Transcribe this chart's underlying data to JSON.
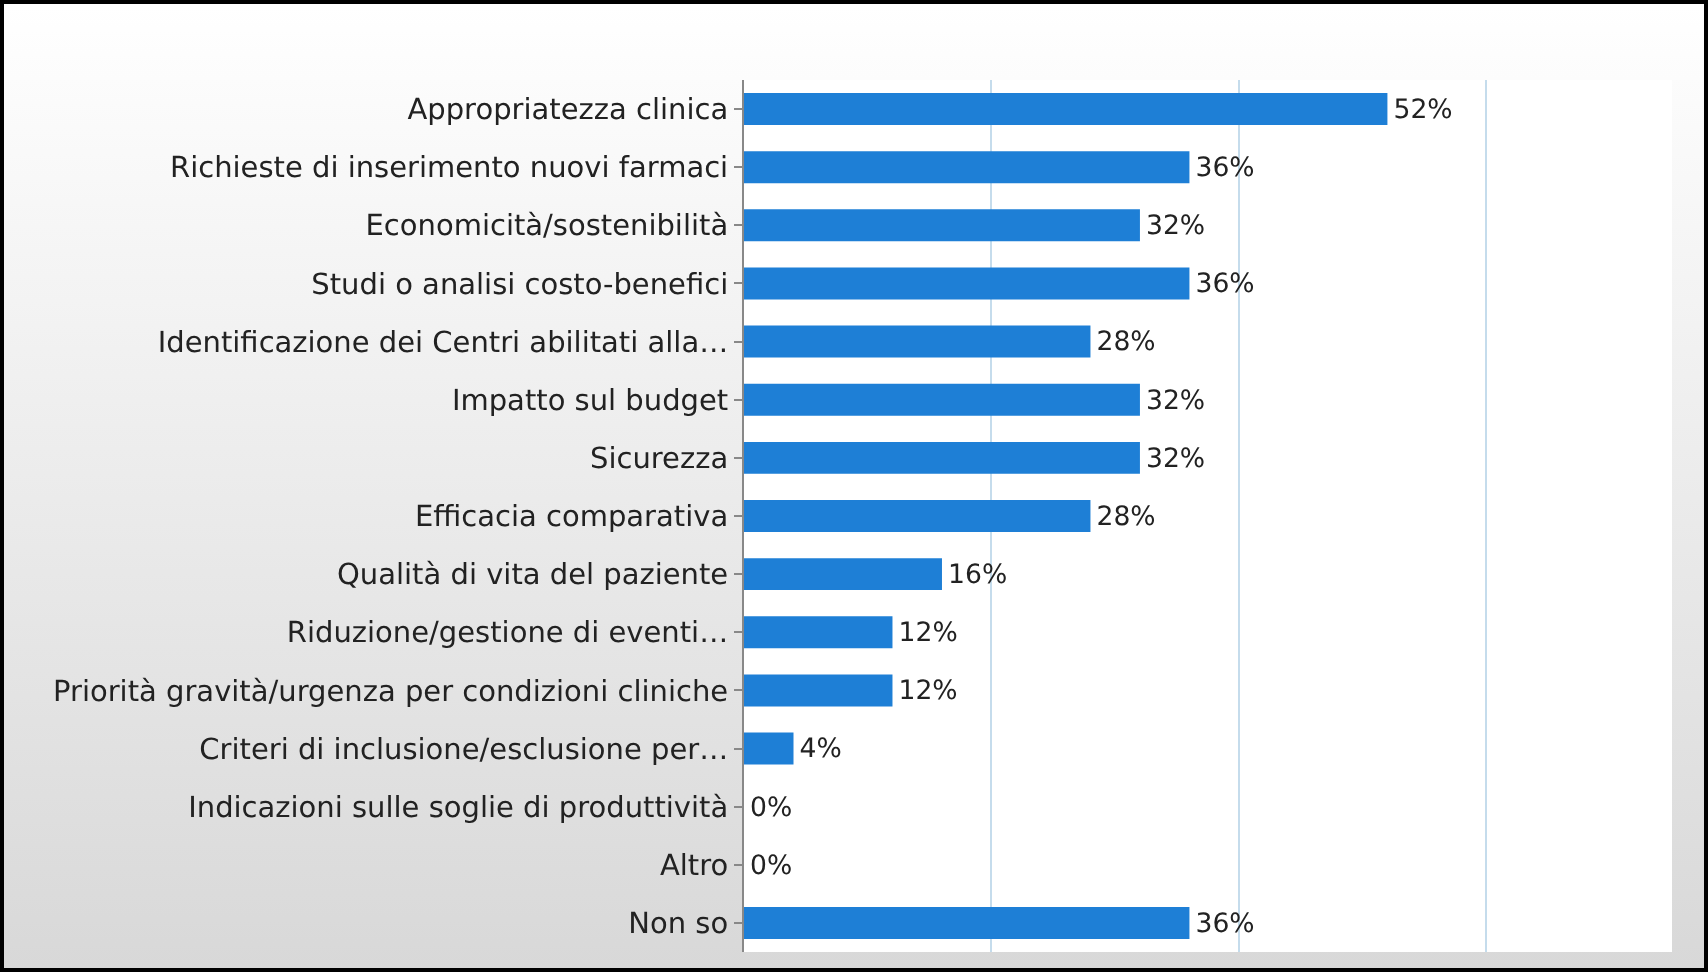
{
  "chart_data": {
    "type": "bar",
    "orientation": "horizontal",
    "categories": [
      "Appropriatezza clinica",
      "Richieste di inserimento nuovi farmaci",
      "Economicità/sostenibilità",
      "Studi o analisi costo-benefici",
      "Identificazione dei Centri abilitati alla…",
      "Impatto sul budget",
      "Sicurezza",
      "Efficacia comparativa",
      "Qualità di vita del paziente",
      "Riduzione/gestione di eventi…",
      "Priorità gravità/urgenza per condizioni cliniche",
      "Criteri di inclusione/esclusione per…",
      "Indicazioni sulle soglie di produttività",
      "Altro",
      "Non so"
    ],
    "values": [
      52,
      36,
      32,
      36,
      28,
      32,
      32,
      28,
      16,
      12,
      12,
      4,
      0,
      0,
      36
    ],
    "value_labels": [
      "52%",
      "36%",
      "32%",
      "36%",
      "28%",
      "32%",
      "32%",
      "28%",
      "16%",
      "12%",
      "12%",
      "4%",
      "0%",
      "0%",
      "36%"
    ],
    "color": "#1e7fd6",
    "xlim": [
      0,
      75
    ],
    "xticks": [
      {
        "value": 20,
        "label": null
      },
      {
        "value": 40,
        "label": null
      },
      {
        "value": 60,
        "label": null
      }
    ],
    "grid": "x",
    "tick_labels": "y"
  }
}
